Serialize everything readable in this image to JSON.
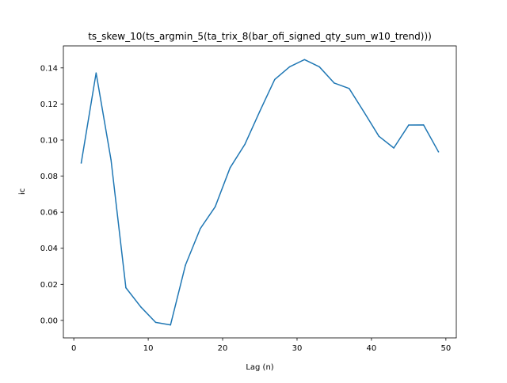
{
  "chart_data": {
    "type": "line",
    "title": "ts_skew_10(ts_argmin_5(ta_trix_8(bar_ofi_signed_qty_sum_w10_trend)))",
    "xlabel": "Lag (n)",
    "ylabel": "ic",
    "xlim": [
      -1.4,
      51.4
    ],
    "ylim": [
      -0.0097,
      0.1522
    ],
    "xticks": [
      0,
      10,
      20,
      30,
      40,
      50
    ],
    "yticks": [
      0.0,
      0.02,
      0.04,
      0.06,
      0.08,
      0.1,
      0.12,
      0.14
    ],
    "xtick_labels": [
      "0",
      "10",
      "20",
      "30",
      "40",
      "50"
    ],
    "ytick_labels": [
      "0.00",
      "0.02",
      "0.04",
      "0.06",
      "0.08",
      "0.10",
      "0.12",
      "0.14"
    ],
    "grid": false,
    "legend": "none",
    "series": [
      {
        "color": "#1f77b4",
        "x": [
          1,
          3,
          5,
          7,
          9,
          11,
          13,
          15,
          17,
          19,
          21,
          23,
          25,
          27,
          29,
          31,
          33,
          35,
          37,
          39,
          41,
          43,
          45,
          47,
          49
        ],
        "y": [
          0.0873,
          0.1372,
          0.0891,
          0.0181,
          0.0075,
          -0.0011,
          -0.0025,
          0.0306,
          0.0509,
          0.063,
          0.0846,
          0.0977,
          0.116,
          0.1336,
          0.1406,
          0.1446,
          0.1406,
          0.1316,
          0.1286,
          0.1155,
          0.1021,
          0.0956,
          0.1083,
          0.1084,
          0.0935
        ]
      }
    ]
  }
}
